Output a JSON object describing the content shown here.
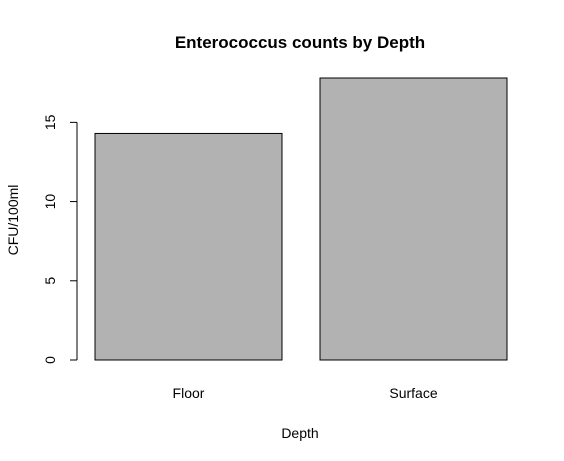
{
  "chart_data": {
    "type": "bar",
    "title": "Enterococcus counts by Depth",
    "xlabel": "Depth",
    "ylabel": "CFU/100ml",
    "categories": [
      "Floor",
      "Surface"
    ],
    "values": [
      14.3,
      17.8
    ],
    "yticks": [
      0,
      5,
      10,
      15
    ],
    "ylim": [
      0,
      17.8
    ],
    "grid": false,
    "legend": "none",
    "bar_color": "#b2b2b2",
    "border_color": "#000000"
  }
}
